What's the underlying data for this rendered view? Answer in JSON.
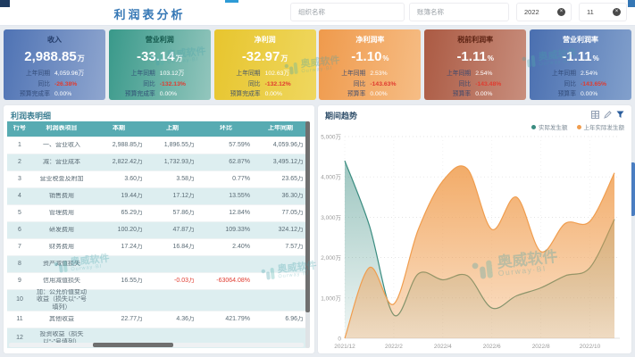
{
  "header": {
    "title": "利润表分析",
    "org_filter": "组织名称",
    "book_filter": "账簿名称",
    "year": "2022",
    "month": "11"
  },
  "watermark": {
    "brand": "奥威软件",
    "sub": "Ourway·BI"
  },
  "cards": [
    {
      "title": "收入",
      "value": "2,988.85",
      "unit": "万",
      "color_from": "#4f73b4",
      "color_to": "#8fa6cf",
      "title_color": "#243d6b",
      "rows": [
        {
          "label": "上年同期",
          "value": "4,059.96万",
          "red": false
        },
        {
          "label": "同比",
          "value": "-26.38%",
          "red": true
        },
        {
          "label": "预算完成率",
          "value": "0.00%",
          "red": false
        }
      ]
    },
    {
      "title": "营业利润",
      "value": "-33.14",
      "unit": "万",
      "color_from": "#39998a",
      "color_to": "#93c6bd",
      "title_color": "#14584c",
      "rows": [
        {
          "label": "上年同期",
          "value": "103.12万",
          "red": false
        },
        {
          "label": "同比",
          "value": "-132.13%",
          "red": true
        },
        {
          "label": "预算完成率",
          "value": "0.00%",
          "red": false
        }
      ]
    },
    {
      "title": "净利润",
      "value": "-32.97",
      "unit": "万",
      "color_from": "#e7c52e",
      "color_to": "#efd75f",
      "title_color": "#ffffff",
      "rows": [
        {
          "label": "上年同期",
          "value": "102.63万",
          "red": false
        },
        {
          "label": "同比",
          "value": "-132.12%",
          "red": true
        },
        {
          "label": "预算完成率",
          "value": "0.00%",
          "red": false
        }
      ]
    },
    {
      "title": "净利润率",
      "value": "-1.10",
      "unit": "%",
      "color_from": "#ef9a4c",
      "color_to": "#f6bd85",
      "title_color": "#ffffff",
      "rows": [
        {
          "label": "上年同期",
          "value": "2.53%",
          "red": false
        },
        {
          "label": "同比",
          "value": "-143.63%",
          "red": true
        },
        {
          "label": "预算率",
          "value": "0.00%",
          "red": false
        }
      ]
    },
    {
      "title": "税前利润率",
      "value": "-1.11",
      "unit": "%",
      "color_from": "#ab5a43",
      "color_to": "#c88e7d",
      "title_color": "#5e2414",
      "rows": [
        {
          "label": "上年同期",
          "value": "2.54%",
          "red": false
        },
        {
          "label": "同比",
          "value": "-143.48%",
          "red": true
        },
        {
          "label": "预算率",
          "value": "0.00%",
          "red": false
        }
      ]
    },
    {
      "title": "营业利润率",
      "value": "-1.11",
      "unit": "%",
      "color_from": "#4a6fb0",
      "color_to": "#82a0cc",
      "title_color": "#ffffff",
      "rows": [
        {
          "label": "上年同期",
          "value": "2.54%",
          "red": false
        },
        {
          "label": "同比",
          "value": "-143.65%",
          "red": true
        },
        {
          "label": "预算率",
          "value": "0.00%",
          "red": false
        }
      ]
    }
  ],
  "table": {
    "title": "利润表明细",
    "columns": [
      "行号",
      "利润表项目",
      "本期",
      "上期",
      "环比",
      "上年同期"
    ],
    "rows": [
      {
        "no": "1",
        "item": "一、营业收入",
        "cur": "2,988.85万",
        "prev": "1,896.55万",
        "mom": "57.59%",
        "ly": "4,059.96万"
      },
      {
        "no": "2",
        "item": "减：营业成本",
        "cur": "2,822.42万",
        "prev": "1,732.93万",
        "mom": "62.87%",
        "ly": "3,495.12万"
      },
      {
        "no": "3",
        "item": "营业税金及附加",
        "cur": "3.60万",
        "prev": "3.58万",
        "mom": "0.77%",
        "ly": "23.65万"
      },
      {
        "no": "4",
        "item": "销售费用",
        "cur": "19.44万",
        "prev": "17.12万",
        "mom": "13.55%",
        "ly": "36.30万"
      },
      {
        "no": "5",
        "item": "管理费用",
        "cur": "65.29万",
        "prev": "57.86万",
        "mom": "12.84%",
        "ly": "77.05万"
      },
      {
        "no": "6",
        "item": "研发费用",
        "cur": "100.20万",
        "prev": "47.87万",
        "mom": "109.33%",
        "ly": "324.12万"
      },
      {
        "no": "7",
        "item": "财务费用",
        "cur": "17.24万",
        "prev": "16.84万",
        "mom": "2.40%",
        "ly": "7.57万"
      },
      {
        "no": "8",
        "item": "资产减值损失",
        "cur": "",
        "prev": "",
        "mom": "",
        "ly": ""
      },
      {
        "no": "9",
        "item": "信用减值损失",
        "cur": "16.55万",
        "prev": "-0.03万",
        "mom": "-63064.08%",
        "ly": "",
        "prev_red": true,
        "mom_red": true
      },
      {
        "no": "10",
        "item": "加：公允价值变动收益（损失以“-”号填列）",
        "cur": "",
        "prev": "",
        "mom": "",
        "ly": "",
        "tall": true
      },
      {
        "no": "11",
        "item": "其他收益",
        "cur": "22.77万",
        "prev": "4.36万",
        "mom": "421.79%",
        "ly": "6.96万"
      },
      {
        "no": "12",
        "item": "投资收益（损失以“-”号填列）",
        "cur": "",
        "prev": "",
        "mom": "",
        "ly": "",
        "tall": true
      },
      {
        "no": "13",
        "item": "其中：对联营企业和合营企业的投资",
        "cur": "",
        "prev": "",
        "mom": "",
        "ly": "",
        "tall": true
      }
    ]
  },
  "chart": {
    "title": "期间趋势",
    "legend": [
      {
        "label": "实际发生额",
        "color": "#3a8c80"
      },
      {
        "label": "上年实际发生额",
        "color": "#f09d4e"
      }
    ]
  },
  "chart_data": {
    "type": "area",
    "x": [
      "2021/12",
      "2022/1",
      "2022/2",
      "2022/3",
      "2022/4",
      "2022/5",
      "2022/6",
      "2022/7",
      "2022/8",
      "2022/9",
      "2022/10",
      "2022/11"
    ],
    "x_tick_labels": [
      "2021/12",
      "2022/2",
      "2022/4",
      "2022/6",
      "2022/8",
      "2022/10"
    ],
    "x_tick_every": 2,
    "series": [
      {
        "name": "实际发生额",
        "color": "#3a8c80",
        "values": [
          4400,
          2800,
          580,
          1600,
          1450,
          1550,
          750,
          1050,
          1250,
          1550,
          1750,
          2950
        ]
      },
      {
        "name": "上年实际发生额",
        "color": "#f09d4e",
        "values": [
          0,
          1750,
          850,
          2700,
          3900,
          4200,
          2700,
          3500,
          2150,
          2850,
          2900,
          4100
        ]
      }
    ],
    "ylim": [
      0,
      5000
    ],
    "y_tick_step": 1000,
    "y_unit": "万",
    "grid": "dotted",
    "legend_position": "top-right",
    "smooth": true
  }
}
